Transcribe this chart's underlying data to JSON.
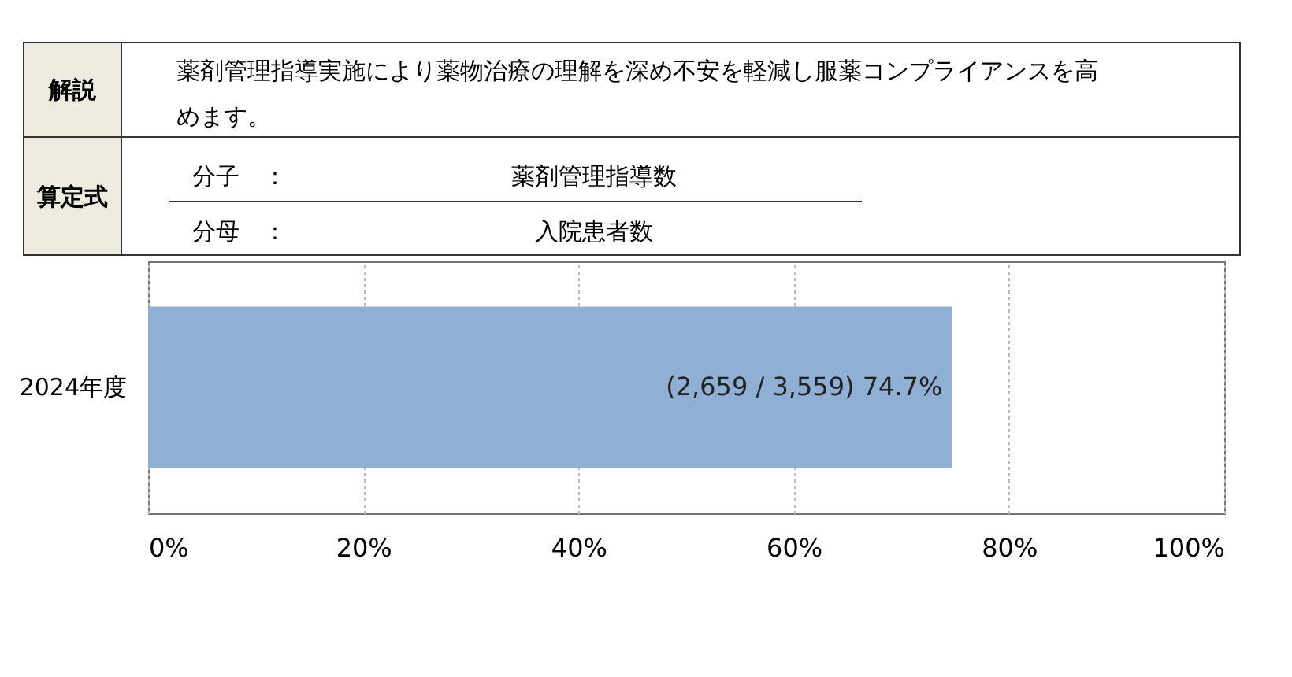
{
  "chart_data": {
    "type": "bar",
    "orientation": "horizontal",
    "categories": [
      "2024年度"
    ],
    "series": [
      {
        "color": "#8fafd4",
        "values": [
          74.7
        ]
      }
    ],
    "value_labels": [
      "(2,659  / 3,559)   74.7%"
    ],
    "xlim": [
      0,
      100
    ],
    "xticks": [
      {
        "value": 0,
        "label": "0%"
      },
      {
        "value": 20,
        "label": "20%"
      },
      {
        "value": 40,
        "label": "40%"
      },
      {
        "value": 60,
        "label": "60%"
      },
      {
        "value": 80,
        "label": "80%"
      },
      {
        "value": 100,
        "label": "100%"
      }
    ],
    "grid": "x",
    "annotations": [
      "解説",
      "薬剤管理指導実施により薬物治療の理解を深め不安を軽減し服薬コンプライアンスを高めます。",
      "算定式",
      "分子　：",
      "薬剤管理指導数",
      "分母　：",
      "入院患者数"
    ]
  }
}
